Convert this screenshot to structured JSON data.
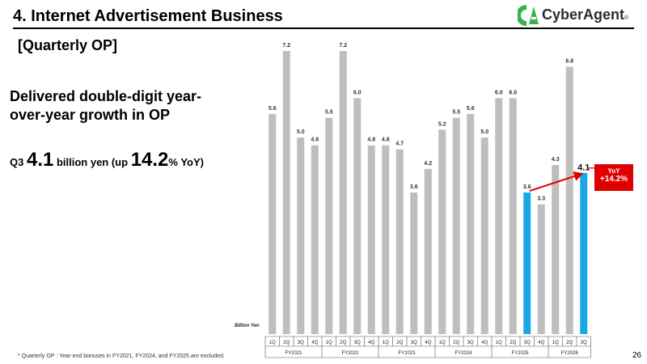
{
  "header": {
    "title": "4.  Internet Advertisement Business",
    "logo_text": "CyberAgent",
    "logo_mark": "®"
  },
  "section_label": "[Quarterly OP]",
  "headline": "Delivered double-digit year-over-year growth in OP",
  "q3": {
    "prefix": "Q3 ",
    "value": "4.1",
    "mid": " billion yen (up ",
    "pct": "14.2",
    "suffix": "% YoY)"
  },
  "callout": {
    "line1": "YoY",
    "line2": "+14.2%"
  },
  "footnote": "*  Quarterly OP : Year-end bonuses in FY2021, FY2024, and FY2025 are excluded.",
  "page_number": "26",
  "colors": {
    "bar_default": "#bebebe",
    "bar_highlight": "#1aa7e6",
    "arrow": "#e00000"
  },
  "chart_data": {
    "type": "bar",
    "ylabel": "Billion Yen",
    "ylim": [
      0,
      7.5
    ],
    "categories": [
      "1Q",
      "2Q",
      "3Q",
      "4Q",
      "1Q",
      "2Q",
      "3Q",
      "4Q",
      "1Q",
      "2Q",
      "3Q",
      "4Q",
      "1Q",
      "2Q",
      "3Q",
      "4Q",
      "1Q",
      "2Q",
      "3Q",
      "4Q",
      "1Q",
      "2Q",
      "3Q"
    ],
    "groups": [
      "FY2021",
      "FY2022",
      "FY2023",
      "FY2024",
      "FY2025",
      "FY2026"
    ],
    "group_sizes": [
      4,
      4,
      4,
      4,
      4,
      3
    ],
    "values": [
      5.6,
      7.2,
      5.0,
      4.8,
      5.5,
      7.2,
      6.0,
      4.8,
      4.8,
      4.7,
      3.6,
      4.2,
      5.2,
      5.5,
      5.6,
      5.0,
      6.0,
      6.0,
      3.6,
      3.3,
      4.3,
      6.8,
      4.1
    ],
    "labels": [
      "5.6",
      "7.2",
      "5.0",
      "4.8",
      "5.5",
      "7.2",
      "6.0",
      "4.8",
      "4.8",
      "4.7",
      "3.6",
      "4.2",
      "5.2",
      "5.5",
      "5.6",
      "5.0",
      "6.0",
      "6.0",
      "3.6",
      "3.3",
      "4.3",
      "6.8",
      "4.1"
    ],
    "highlight": [
      18,
      22
    ],
    "emphasized_label": 22
  }
}
